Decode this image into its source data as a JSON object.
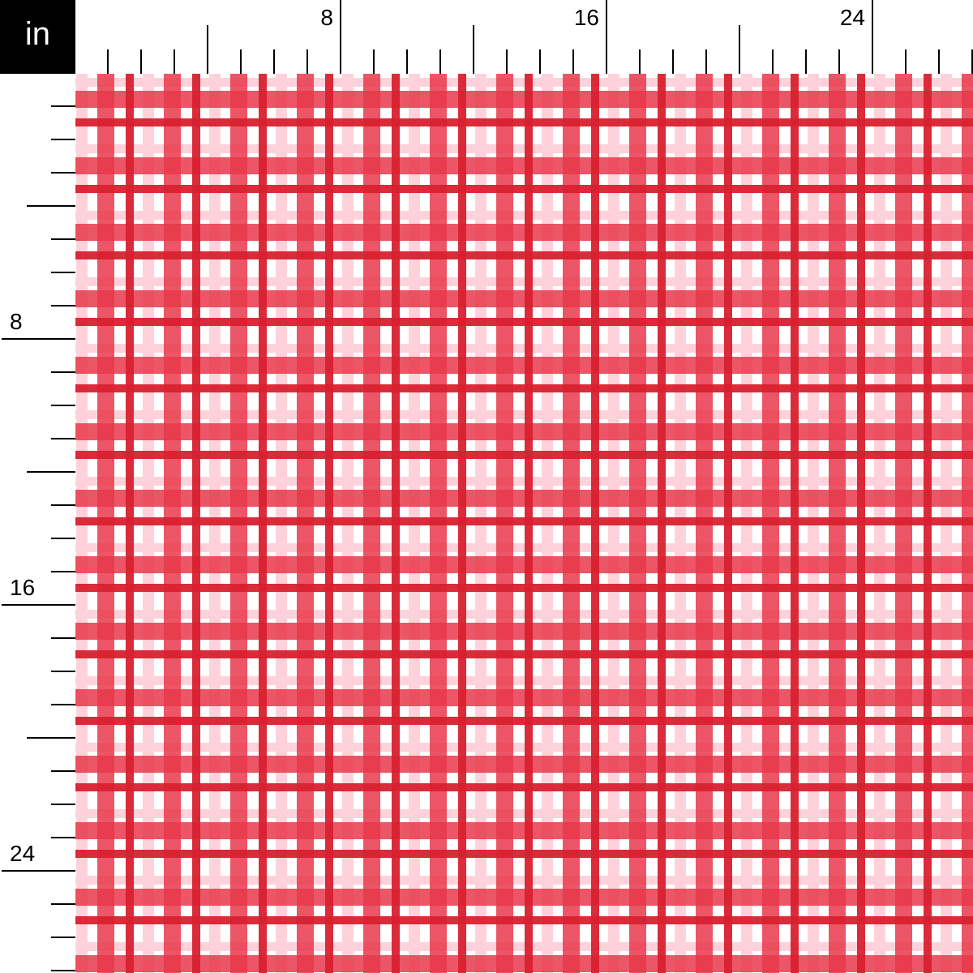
{
  "ruler": {
    "unit": "in",
    "major_labels": [
      "8",
      "16",
      "24"
    ],
    "inches_shown": 27
  },
  "fabric": {
    "pattern": "plaid",
    "repeat_inches": 2,
    "colors": {
      "background": "#ffffff",
      "light_pink": "#ffd2db",
      "broad_red": "#e8384b",
      "dark_red": "#d8202f"
    }
  }
}
